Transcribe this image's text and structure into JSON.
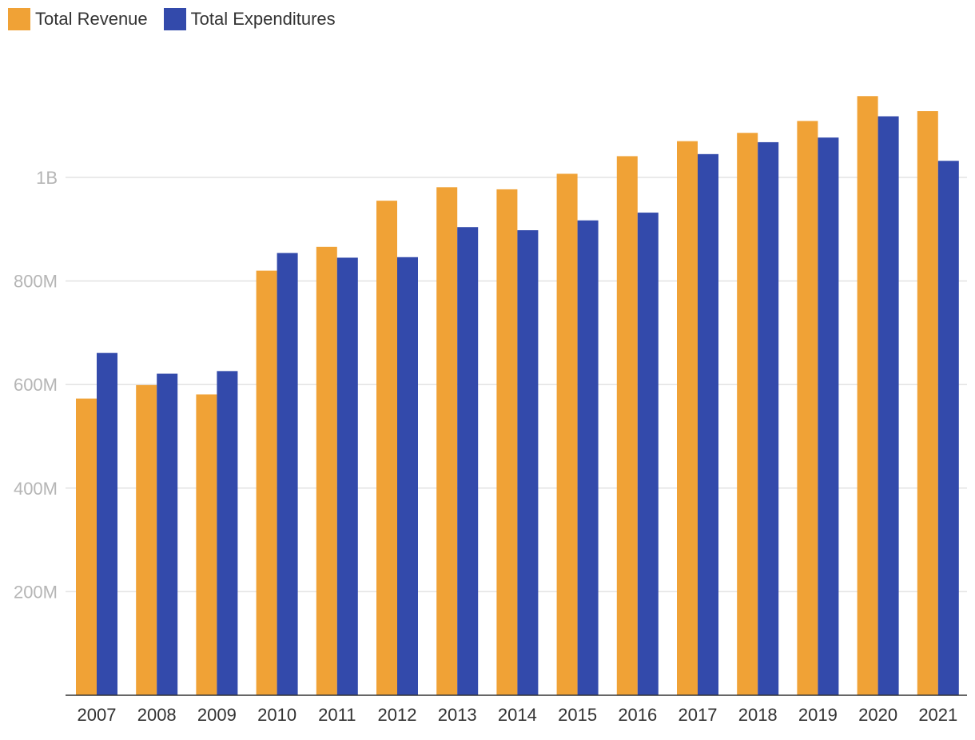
{
  "chart_data": {
    "type": "bar",
    "title": "",
    "xlabel": "",
    "ylabel": "",
    "ylim": [
      0,
      1200000000
    ],
    "yticks": [
      {
        "value": 200000000,
        "label": "200M"
      },
      {
        "value": 400000000,
        "label": "400M"
      },
      {
        "value": 600000000,
        "label": "600M"
      },
      {
        "value": 800000000,
        "label": "800M"
      },
      {
        "value": 1000000000,
        "label": "1B"
      }
    ],
    "grid": true,
    "legend_position": "top-left",
    "categories": [
      "2007",
      "2008",
      "2009",
      "2010",
      "2011",
      "2012",
      "2013",
      "2014",
      "2015",
      "2016",
      "2017",
      "2018",
      "2019",
      "2020",
      "2021"
    ],
    "series": [
      {
        "name": "Total Revenue",
        "color": "#f0a236",
        "values": [
          573000000,
          599000000,
          581000000,
          820000000,
          866000000,
          955000000,
          981000000,
          977000000,
          1007000000,
          1041000000,
          1070000000,
          1086000000,
          1109000000,
          1157000000,
          1128000000
        ]
      },
      {
        "name": "Total Expenditures",
        "color": "#334aab",
        "values": [
          661000000,
          621000000,
          626000000,
          854000000,
          845000000,
          846000000,
          904000000,
          898000000,
          917000000,
          932000000,
          1045000000,
          1068000000,
          1077000000,
          1118000000,
          1032000000
        ]
      }
    ]
  }
}
